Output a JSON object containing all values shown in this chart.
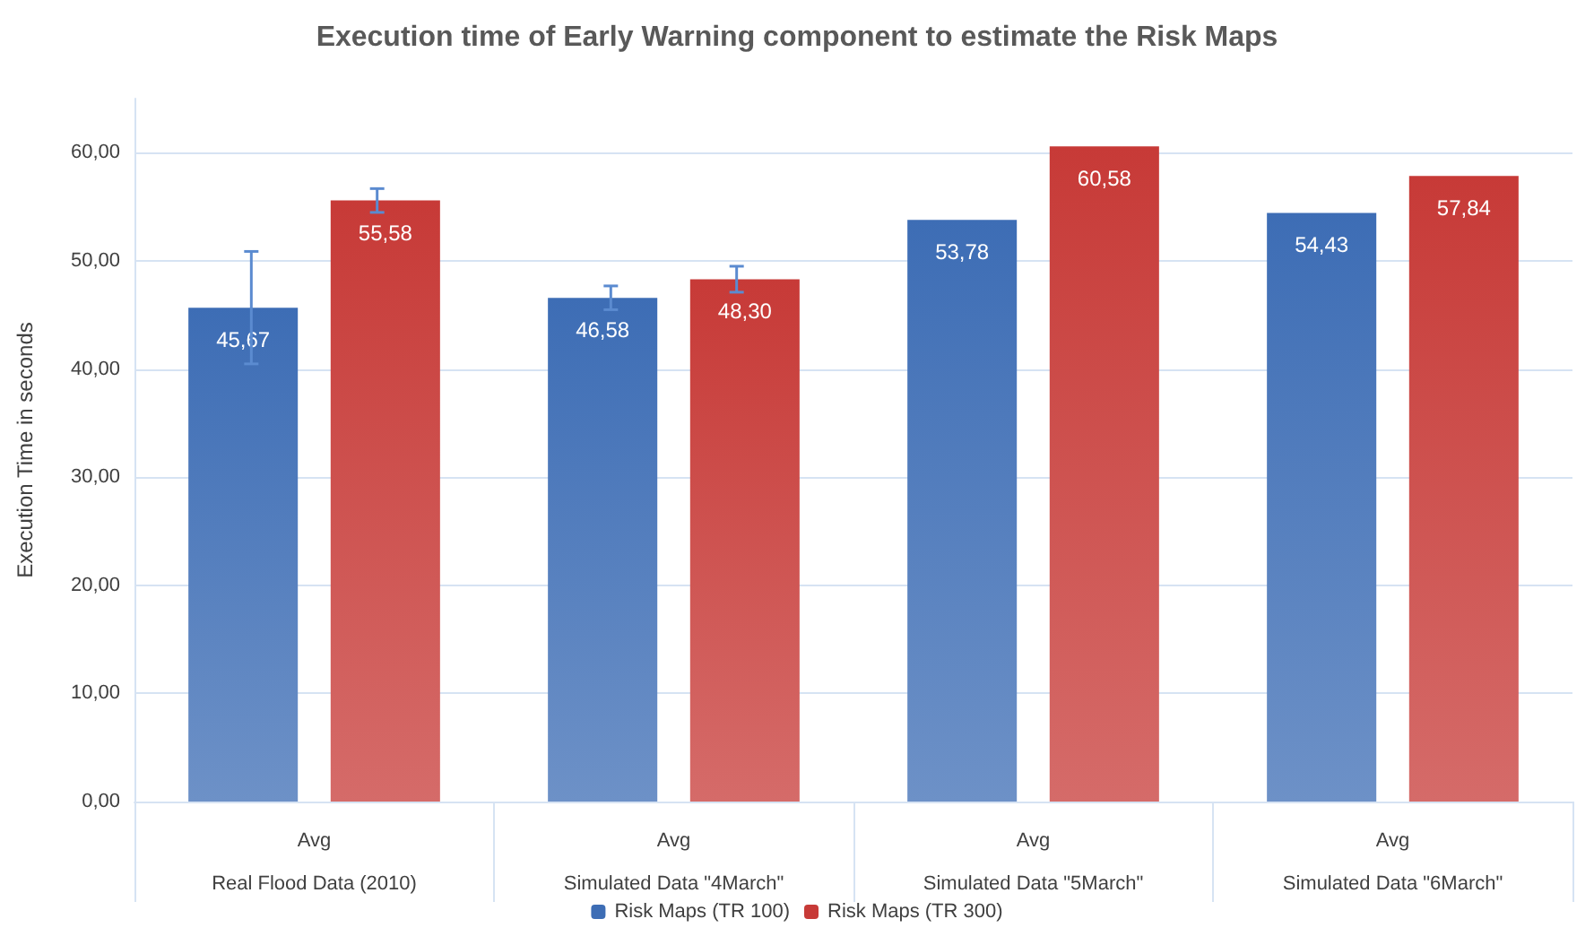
{
  "chart_data": {
    "type": "bar",
    "title": "Execution time of Early Warning component to estimate the Risk Maps",
    "ylabel": "Execution Time in seconds",
    "categories": [
      "Avg\nReal Flood Data (2010)",
      "Avg\nSimulated Data \"4March\"",
      "Avg\nSimulated Data \"5March\"",
      "Avg\nSimulated Data \"6March\""
    ],
    "series": [
      {
        "name": "Risk Maps (TR 100)",
        "color": "#3d6db5",
        "values": [
          45.67,
          46.58,
          53.78,
          54.43
        ],
        "errors": [
          5.2,
          1.1,
          null,
          null
        ],
        "value_labels": [
          "45,67",
          "46,58",
          "53,78",
          "54,43"
        ]
      },
      {
        "name": "Risk Maps (TR 300)",
        "color": "#c73a37",
        "values": [
          55.58,
          48.3,
          60.58,
          57.84
        ],
        "errors": [
          1.1,
          1.2,
          null,
          null
        ],
        "value_labels": [
          "55,58",
          "48,30",
          "60,58",
          "57,84"
        ]
      }
    ],
    "ylim": [
      0,
      65
    ],
    "yticks": [
      {
        "value": 0,
        "label": "0,00"
      },
      {
        "value": 10,
        "label": "10,00"
      },
      {
        "value": 20,
        "label": "20,00"
      },
      {
        "value": 30,
        "label": "30,00"
      },
      {
        "value": 40,
        "label": "40,00"
      },
      {
        "value": 50,
        "label": "50,00"
      },
      {
        "value": 60,
        "label": "60,00"
      }
    ],
    "grid": "y",
    "legend": "bottom"
  }
}
